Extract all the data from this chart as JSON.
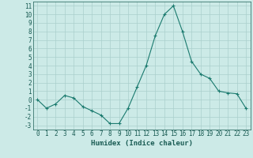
{
  "x": [
    0,
    1,
    2,
    3,
    4,
    5,
    6,
    7,
    8,
    9,
    10,
    11,
    12,
    13,
    14,
    15,
    16,
    17,
    18,
    19,
    20,
    21,
    22,
    23
  ],
  "y": [
    0,
    -1,
    -0.5,
    0.5,
    0.2,
    -0.8,
    -1.3,
    -1.8,
    -2.8,
    -2.8,
    -1,
    1.5,
    4,
    7.5,
    10,
    11,
    8,
    4.5,
    3,
    2.5,
    1,
    0.8,
    0.7,
    -1
  ],
  "line_color": "#1a7a6e",
  "marker": "+",
  "marker_size": 3,
  "marker_lw": 0.8,
  "line_width": 0.8,
  "bg_color": "#cceae7",
  "grid_color": "#aacfcc",
  "xlabel": "Humidex (Indice chaleur)",
  "xlim": [
    -0.5,
    23.5
  ],
  "ylim": [
    -3.5,
    11.5
  ],
  "yticks": [
    -3,
    -2,
    -1,
    0,
    1,
    2,
    3,
    4,
    5,
    6,
    7,
    8,
    9,
    10,
    11
  ],
  "xticks": [
    0,
    1,
    2,
    3,
    4,
    5,
    6,
    7,
    8,
    9,
    10,
    11,
    12,
    13,
    14,
    15,
    16,
    17,
    18,
    19,
    20,
    21,
    22,
    23
  ],
  "tick_color": "#1a5c54",
  "label_fontsize": 5.5,
  "axis_fontsize": 6.5
}
